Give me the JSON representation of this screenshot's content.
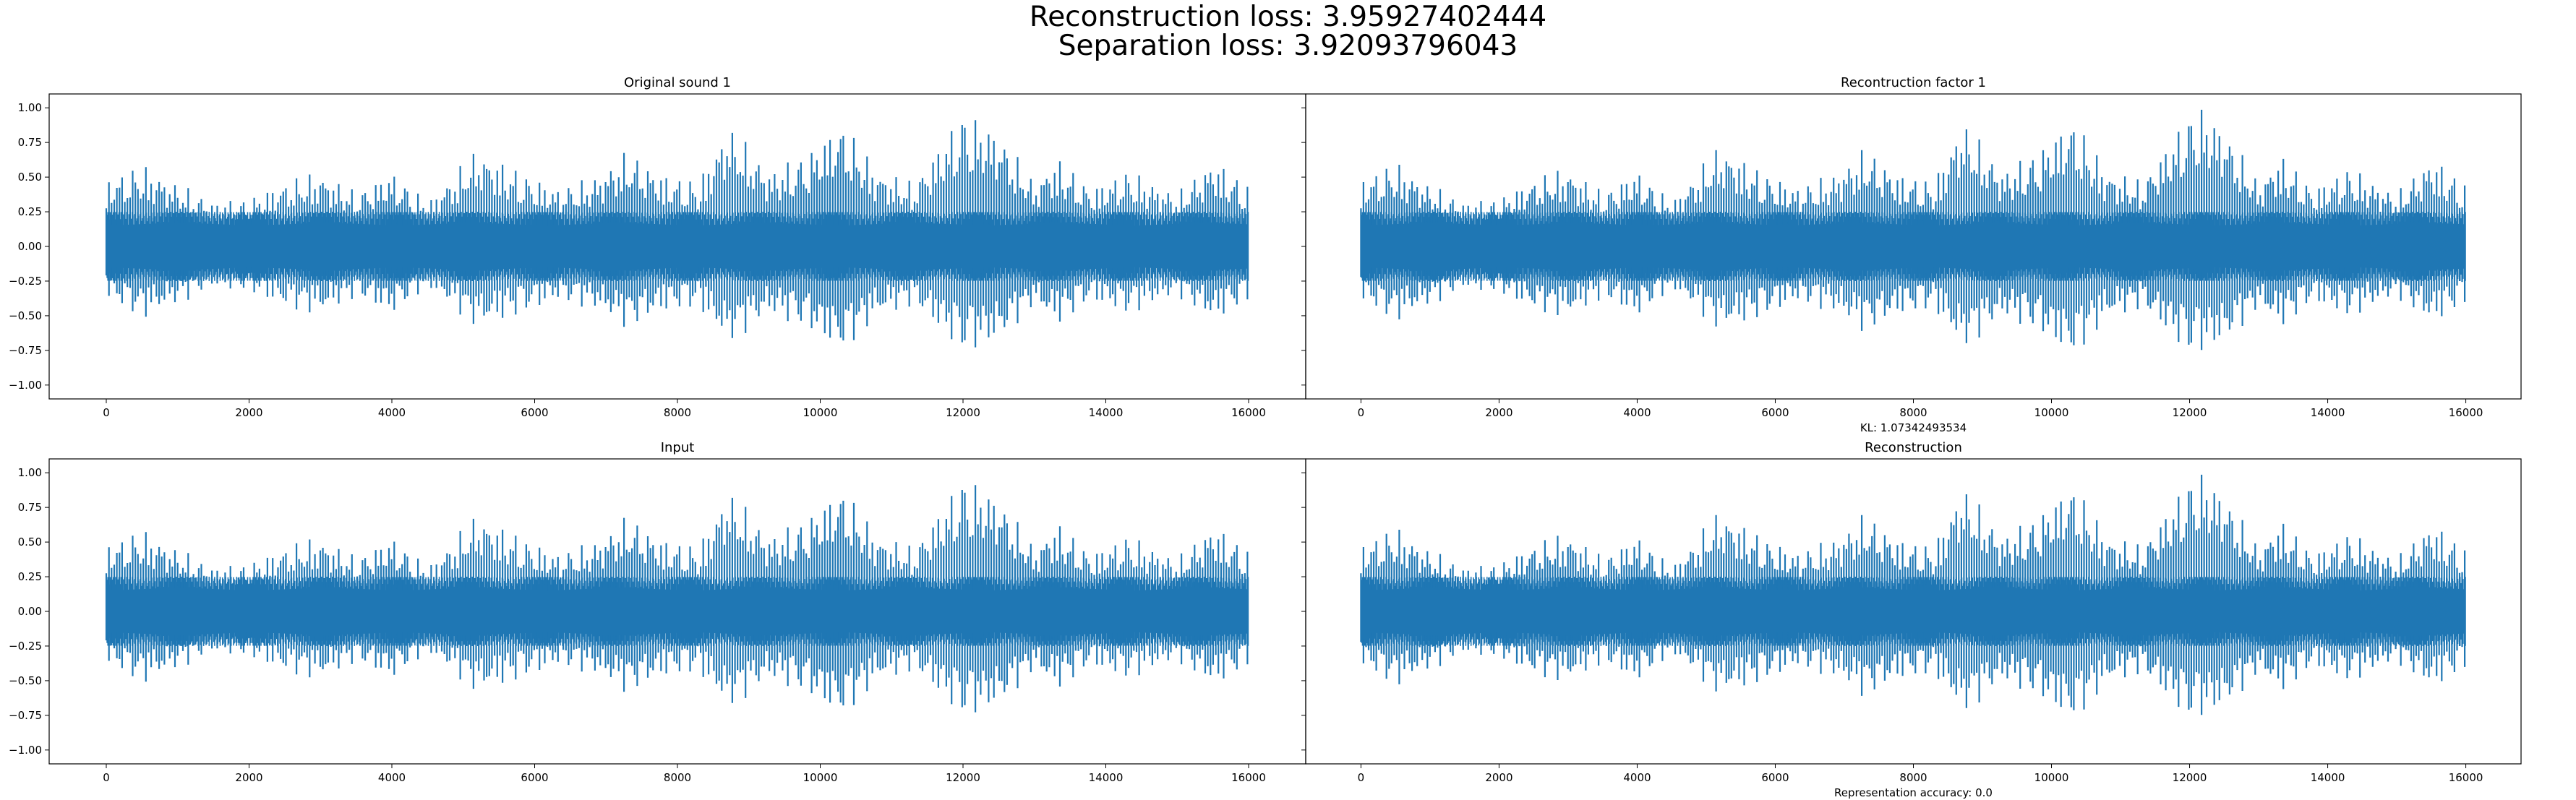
{
  "figure": {
    "suptitle_line1": "Reconstruction loss: 3.95927402444",
    "suptitle_line2": "Separation loss: 3.92093796043"
  },
  "colors": {
    "signal": "#1f77b4",
    "axes": "#000000",
    "background": "#ffffff"
  },
  "chart_data": [
    {
      "type": "line",
      "title": "Original sound 1",
      "annotation": "",
      "xlim": [
        -800,
        16800
      ],
      "ylim": [
        -1.1,
        1.1
      ],
      "xticks": [
        0,
        2000,
        4000,
        6000,
        8000,
        10000,
        12000,
        14000,
        16000
      ],
      "yticks": [
        -1.0,
        -0.75,
        -0.5,
        -0.25,
        0.0,
        0.25,
        0.5,
        0.75,
        1.0
      ],
      "ytick_labels": [
        "−1.00",
        "−0.75",
        "−0.50",
        "−0.25",
        "0.00",
        "0.25",
        "0.50",
        "0.75",
        "1.00"
      ],
      "n_samples": 16000,
      "envelope_pos": [
        [
          0,
          0.5
        ],
        [
          500,
          0.6
        ],
        [
          1000,
          0.46
        ],
        [
          1500,
          0.33
        ],
        [
          2000,
          0.35
        ],
        [
          2500,
          0.48
        ],
        [
          3000,
          0.55
        ],
        [
          3500,
          0.4
        ],
        [
          4000,
          0.55
        ],
        [
          4500,
          0.33
        ],
        [
          5200,
          0.72
        ],
        [
          5800,
          0.55
        ],
        [
          6300,
          0.43
        ],
        [
          6800,
          0.5
        ],
        [
          7300,
          0.7
        ],
        [
          7800,
          0.53
        ],
        [
          8300,
          0.48
        ],
        [
          8700,
          0.9
        ],
        [
          9300,
          0.56
        ],
        [
          9800,
          0.68
        ],
        [
          10300,
          0.92
        ],
        [
          10800,
          0.57
        ],
        [
          11300,
          0.47
        ],
        [
          12000,
          0.99
        ],
        [
          12500,
          0.85
        ],
        [
          13000,
          0.47
        ],
        [
          13300,
          0.66
        ],
        [
          13800,
          0.43
        ],
        [
          14300,
          0.56
        ],
        [
          15000,
          0.39
        ],
        [
          15500,
          0.64
        ],
        [
          16000,
          0.45
        ]
      ],
      "envelope_neg": [
        [
          0,
          -0.38
        ],
        [
          500,
          -0.53
        ],
        [
          1000,
          -0.42
        ],
        [
          1500,
          -0.3
        ],
        [
          2000,
          -0.33
        ],
        [
          2500,
          -0.45
        ],
        [
          3000,
          -0.5
        ],
        [
          3500,
          -0.37
        ],
        [
          4000,
          -0.5
        ],
        [
          4500,
          -0.3
        ],
        [
          5200,
          -0.6
        ],
        [
          5800,
          -0.5
        ],
        [
          6300,
          -0.4
        ],
        [
          6800,
          -0.45
        ],
        [
          7300,
          -0.6
        ],
        [
          7800,
          -0.48
        ],
        [
          8300,
          -0.45
        ],
        [
          8700,
          -0.72
        ],
        [
          9300,
          -0.5
        ],
        [
          9800,
          -0.6
        ],
        [
          10300,
          -0.78
        ],
        [
          10800,
          -0.52
        ],
        [
          11300,
          -0.43
        ],
        [
          12000,
          -0.78
        ],
        [
          12500,
          -0.7
        ],
        [
          13000,
          -0.43
        ],
        [
          13300,
          -0.58
        ],
        [
          13800,
          -0.4
        ],
        [
          14300,
          -0.5
        ],
        [
          15000,
          -0.36
        ],
        [
          15500,
          -0.55
        ],
        [
          16000,
          -0.4
        ]
      ]
    },
    {
      "type": "line",
      "title": "Recontruction factor 1",
      "annotation": "KL: 1.07342493534",
      "xlim": [
        -800,
        16800
      ],
      "ylim": [
        -1.1,
        1.1
      ],
      "xticks": [
        0,
        2000,
        4000,
        6000,
        8000,
        10000,
        12000,
        14000,
        16000
      ],
      "yticks": [],
      "ytick_labels": [],
      "n_samples": 16000,
      "envelope_pos": [
        [
          0,
          0.5
        ],
        [
          500,
          0.62
        ],
        [
          1000,
          0.45
        ],
        [
          1500,
          0.33
        ],
        [
          2000,
          0.35
        ],
        [
          2500,
          0.5
        ],
        [
          3000,
          0.58
        ],
        [
          3500,
          0.4
        ],
        [
          4000,
          0.56
        ],
        [
          4500,
          0.33
        ],
        [
          5200,
          0.75
        ],
        [
          5800,
          0.55
        ],
        [
          6300,
          0.44
        ],
        [
          6800,
          0.52
        ],
        [
          7300,
          0.72
        ],
        [
          7800,
          0.53
        ],
        [
          8300,
          0.48
        ],
        [
          8700,
          0.93
        ],
        [
          9300,
          0.56
        ],
        [
          9800,
          0.7
        ],
        [
          10300,
          0.95
        ],
        [
          10800,
          0.57
        ],
        [
          11300,
          0.48
        ],
        [
          12100,
          1.05
        ],
        [
          12500,
          0.88
        ],
        [
          13000,
          0.47
        ],
        [
          13300,
          0.68
        ],
        [
          13800,
          0.43
        ],
        [
          14300,
          0.58
        ],
        [
          15000,
          0.39
        ],
        [
          15500,
          0.66
        ],
        [
          16000,
          0.46
        ]
      ],
      "envelope_neg": [
        [
          0,
          -0.4
        ],
        [
          500,
          -0.55
        ],
        [
          1000,
          -0.43
        ],
        [
          1500,
          -0.31
        ],
        [
          2000,
          -0.34
        ],
        [
          2500,
          -0.47
        ],
        [
          3000,
          -0.52
        ],
        [
          3500,
          -0.38
        ],
        [
          4000,
          -0.52
        ],
        [
          4500,
          -0.31
        ],
        [
          5200,
          -0.62
        ],
        [
          5800,
          -0.52
        ],
        [
          6300,
          -0.41
        ],
        [
          6800,
          -0.47
        ],
        [
          7300,
          -0.63
        ],
        [
          7800,
          -0.5
        ],
        [
          8300,
          -0.46
        ],
        [
          8700,
          -0.76
        ],
        [
          9300,
          -0.52
        ],
        [
          9800,
          -0.62
        ],
        [
          10300,
          -0.82
        ],
        [
          10800,
          -0.54
        ],
        [
          11300,
          -0.45
        ],
        [
          12000,
          -0.8
        ],
        [
          12500,
          -0.72
        ],
        [
          13000,
          -0.45
        ],
        [
          13300,
          -0.6
        ],
        [
          13800,
          -0.41
        ],
        [
          14300,
          -0.52
        ],
        [
          15000,
          -0.37
        ],
        [
          15500,
          -0.57
        ],
        [
          16000,
          -0.42
        ]
      ]
    },
    {
      "type": "line",
      "title": "Input",
      "annotation": "",
      "xlim": [
        -800,
        16800
      ],
      "ylim": [
        -1.1,
        1.1
      ],
      "xticks": [
        0,
        2000,
        4000,
        6000,
        8000,
        10000,
        12000,
        14000,
        16000
      ],
      "yticks": [
        -1.0,
        -0.75,
        -0.5,
        -0.25,
        0.0,
        0.25,
        0.5,
        0.75,
        1.0
      ],
      "ytick_labels": [
        "−1.00",
        "−0.75",
        "−0.50",
        "−0.25",
        "0.00",
        "0.25",
        "0.50",
        "0.75",
        "1.00"
      ],
      "n_samples": 16000,
      "envelope_pos": [
        [
          0,
          0.5
        ],
        [
          500,
          0.6
        ],
        [
          1000,
          0.46
        ],
        [
          1500,
          0.33
        ],
        [
          2000,
          0.35
        ],
        [
          2500,
          0.48
        ],
        [
          3000,
          0.55
        ],
        [
          3500,
          0.4
        ],
        [
          4000,
          0.55
        ],
        [
          4500,
          0.33
        ],
        [
          5200,
          0.72
        ],
        [
          5800,
          0.55
        ],
        [
          6300,
          0.43
        ],
        [
          6800,
          0.5
        ],
        [
          7300,
          0.7
        ],
        [
          7800,
          0.53
        ],
        [
          8300,
          0.48
        ],
        [
          8700,
          0.9
        ],
        [
          9300,
          0.56
        ],
        [
          9800,
          0.68
        ],
        [
          10300,
          0.92
        ],
        [
          10800,
          0.57
        ],
        [
          11300,
          0.47
        ],
        [
          12000,
          0.99
        ],
        [
          12500,
          0.85
        ],
        [
          13000,
          0.47
        ],
        [
          13300,
          0.66
        ],
        [
          13800,
          0.43
        ],
        [
          14300,
          0.56
        ],
        [
          15000,
          0.39
        ],
        [
          15500,
          0.64
        ],
        [
          16000,
          0.45
        ]
      ],
      "envelope_neg": [
        [
          0,
          -0.38
        ],
        [
          500,
          -0.53
        ],
        [
          1000,
          -0.42
        ],
        [
          1500,
          -0.3
        ],
        [
          2000,
          -0.33
        ],
        [
          2500,
          -0.45
        ],
        [
          3000,
          -0.5
        ],
        [
          3500,
          -0.37
        ],
        [
          4000,
          -0.5
        ],
        [
          4500,
          -0.3
        ],
        [
          5200,
          -0.6
        ],
        [
          5800,
          -0.5
        ],
        [
          6300,
          -0.4
        ],
        [
          6800,
          -0.45
        ],
        [
          7300,
          -0.6
        ],
        [
          7800,
          -0.48
        ],
        [
          8300,
          -0.45
        ],
        [
          8700,
          -0.72
        ],
        [
          9300,
          -0.5
        ],
        [
          9800,
          -0.6
        ],
        [
          10300,
          -0.78
        ],
        [
          10800,
          -0.52
        ],
        [
          11300,
          -0.43
        ],
        [
          12000,
          -0.78
        ],
        [
          12500,
          -0.7
        ],
        [
          13000,
          -0.43
        ],
        [
          13300,
          -0.58
        ],
        [
          13800,
          -0.4
        ],
        [
          14300,
          -0.5
        ],
        [
          15000,
          -0.36
        ],
        [
          15500,
          -0.55
        ],
        [
          16000,
          -0.4
        ]
      ]
    },
    {
      "type": "line",
      "title": "Reconstruction",
      "annotation": "Representation accuracy: 0.0",
      "xlim": [
        -800,
        16800
      ],
      "ylim": [
        -1.1,
        1.1
      ],
      "xticks": [
        0,
        2000,
        4000,
        6000,
        8000,
        10000,
        12000,
        14000,
        16000
      ],
      "yticks": [],
      "ytick_labels": [],
      "n_samples": 16000,
      "envelope_pos": [
        [
          0,
          0.5
        ],
        [
          500,
          0.62
        ],
        [
          1000,
          0.45
        ],
        [
          1500,
          0.33
        ],
        [
          2000,
          0.35
        ],
        [
          2500,
          0.5
        ],
        [
          3000,
          0.58
        ],
        [
          3500,
          0.4
        ],
        [
          4000,
          0.56
        ],
        [
          4500,
          0.33
        ],
        [
          5200,
          0.75
        ],
        [
          5800,
          0.55
        ],
        [
          6300,
          0.44
        ],
        [
          6800,
          0.52
        ],
        [
          7300,
          0.72
        ],
        [
          7800,
          0.53
        ],
        [
          8300,
          0.48
        ],
        [
          8700,
          0.93
        ],
        [
          9300,
          0.56
        ],
        [
          9800,
          0.7
        ],
        [
          10300,
          0.95
        ],
        [
          10800,
          0.57
        ],
        [
          11300,
          0.48
        ],
        [
          12100,
          1.05
        ],
        [
          12500,
          0.88
        ],
        [
          13000,
          0.47
        ],
        [
          13300,
          0.68
        ],
        [
          13800,
          0.43
        ],
        [
          14300,
          0.58
        ],
        [
          15000,
          0.39
        ],
        [
          15500,
          0.66
        ],
        [
          16000,
          0.46
        ]
      ],
      "envelope_neg": [
        [
          0,
          -0.4
        ],
        [
          500,
          -0.55
        ],
        [
          1000,
          -0.43
        ],
        [
          1500,
          -0.31
        ],
        [
          2000,
          -0.34
        ],
        [
          2500,
          -0.47
        ],
        [
          3000,
          -0.52
        ],
        [
          3500,
          -0.38
        ],
        [
          4000,
          -0.52
        ],
        [
          4500,
          -0.31
        ],
        [
          5200,
          -0.62
        ],
        [
          5800,
          -0.52
        ],
        [
          6300,
          -0.41
        ],
        [
          6800,
          -0.47
        ],
        [
          7300,
          -0.63
        ],
        [
          7800,
          -0.5
        ],
        [
          8300,
          -0.46
        ],
        [
          8700,
          -0.76
        ],
        [
          9300,
          -0.52
        ],
        [
          9800,
          -0.62
        ],
        [
          10300,
          -0.82
        ],
        [
          10800,
          -0.54
        ],
        [
          11300,
          -0.45
        ],
        [
          12000,
          -0.8
        ],
        [
          12500,
          -0.72
        ],
        [
          13000,
          -0.45
        ],
        [
          13300,
          -0.6
        ],
        [
          13800,
          -0.41
        ],
        [
          14300,
          -0.52
        ],
        [
          15000,
          -0.37
        ],
        [
          15500,
          -0.57
        ],
        [
          16000,
          -0.42
        ]
      ]
    }
  ]
}
